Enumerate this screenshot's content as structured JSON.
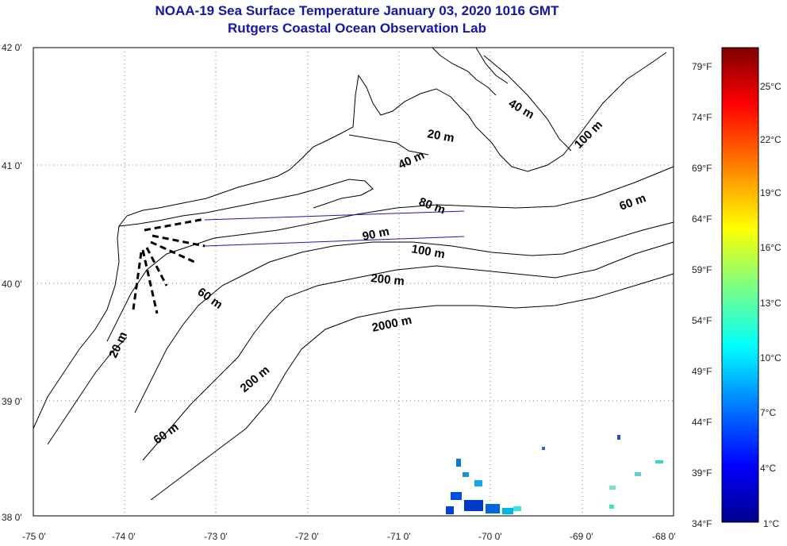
{
  "title": "NOAA-19 Sea Surface Temperature January 03, 2020 1016 GMT",
  "subtitle": "Rutgers Coastal Ocean Observation Lab",
  "lat_labels": [
    "42 0'",
    "41 0'",
    "40 0'",
    "39 0'",
    "38 0'"
  ],
  "lon_labels": [
    "-75 0'",
    "-74 0'",
    "-73 0'",
    "-72 0'",
    "-71 0'",
    "-70 0'",
    "-69 0'",
    "-68 0'"
  ],
  "contour_labels": [
    "40 m",
    "100 m",
    "20 m",
    "40 m",
    "80 m",
    "60 m",
    "90 m",
    "100 m",
    "200 m",
    "60 m",
    "2000 m",
    "20 m",
    "200 m",
    "60 m"
  ],
  "colorbar": {
    "fahrenheit": [
      "79°F",
      "74°F",
      "69°F",
      "64°F",
      "59°F",
      "54°F",
      "49°F",
      "44°F",
      "39°F",
      "34°F"
    ],
    "celsius": [
      "25°C",
      "22°C",
      "19°C",
      "16°C",
      "13°C",
      "10°C",
      "7°C",
      "4°C",
      "1°C"
    ],
    "colors": [
      "#00008c",
      "#0000ff",
      "#0080ff",
      "#00ffff",
      "#80ff80",
      "#ffff00",
      "#ff8000",
      "#ff0000",
      "#800000"
    ]
  },
  "map": {
    "lat_range": [
      38,
      42
    ],
    "lon_range": [
      -75,
      -68
    ],
    "grid": true,
    "colors": {
      "land_outline": "#000000",
      "contour": "#000000",
      "transect": "#1a1aa0",
      "grid": "#808080"
    }
  }
}
